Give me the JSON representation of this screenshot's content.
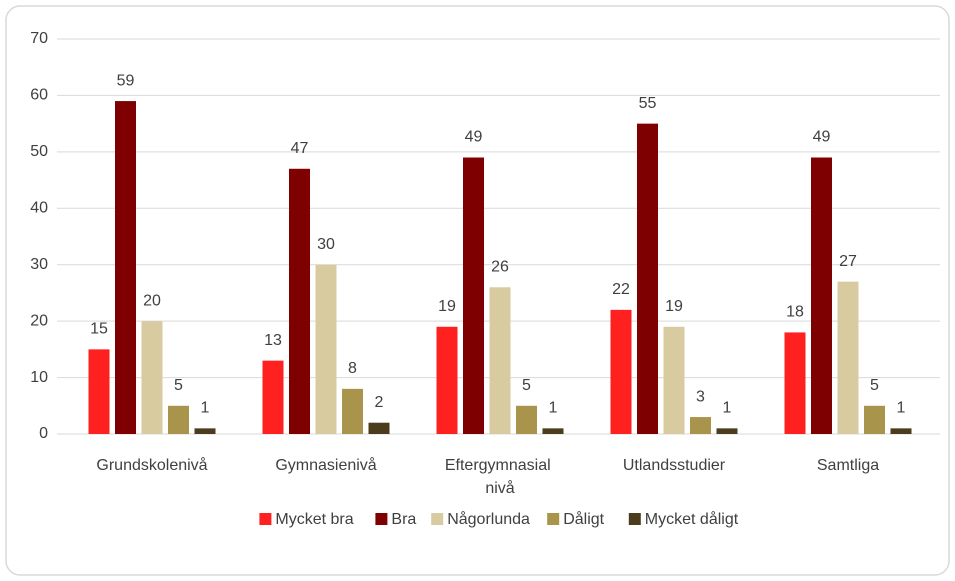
{
  "chart_data": {
    "type": "bar",
    "categories": [
      "Grundskolenivå",
      "Gymnasienivå",
      "Eftergymnasial nivå",
      "Utlandsstudier",
      "Samtliga"
    ],
    "series": [
      {
        "name": "Mycket bra",
        "color": "#ff2020",
        "values": [
          15,
          13,
          19,
          22,
          18
        ]
      },
      {
        "name": "Bra",
        "color": "#7f0000",
        "values": [
          59,
          47,
          49,
          55,
          49
        ]
      },
      {
        "name": "Någorlunda",
        "color": "#d8cba0",
        "values": [
          20,
          30,
          26,
          19,
          27
        ]
      },
      {
        "name": "Dåligt",
        "color": "#a8944a",
        "values": [
          5,
          8,
          5,
          3,
          5
        ]
      },
      {
        "name": "Mycket dåligt",
        "color": "#4a3c1c",
        "values": [
          1,
          2,
          1,
          1,
          1
        ]
      }
    ],
    "ylim": [
      0,
      70
    ],
    "yticks": [
      0,
      10,
      20,
      30,
      40,
      50,
      60,
      70
    ],
    "grid": true,
    "legend": "bottom"
  }
}
